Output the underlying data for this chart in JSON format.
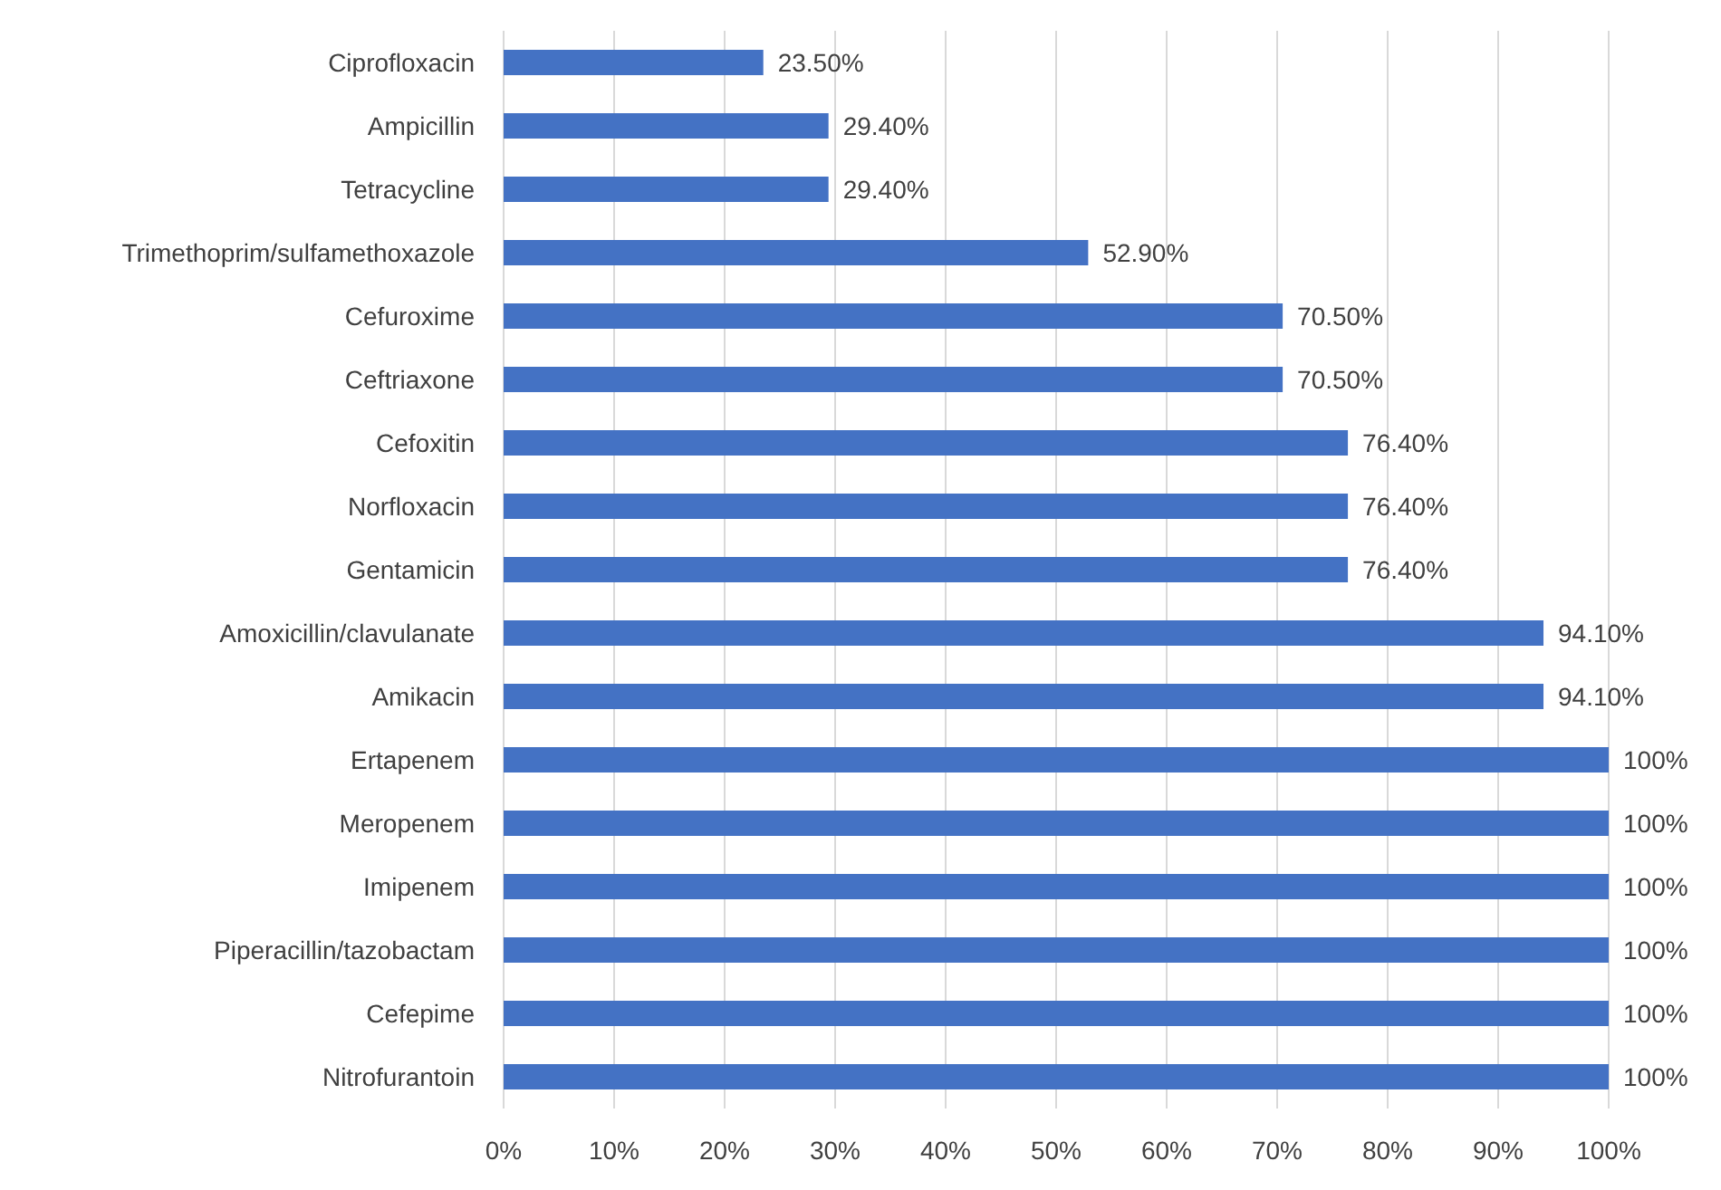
{
  "chart_data": {
    "type": "bar",
    "orientation": "horizontal",
    "categories": [
      "Ciprofloxacin",
      "Ampicillin",
      "Tetracycline",
      "Trimethoprim/sulfamethoxazole",
      "Cefuroxime",
      "Ceftriaxone",
      "Cefoxitin",
      "Norfloxacin",
      "Gentamicin",
      "Amoxicillin/clavulanate",
      "Amikacin",
      "Ertapenem",
      "Meropenem",
      "Imipenem",
      "Piperacillin/tazobactam",
      "Cefepime",
      "Nitrofurantoin"
    ],
    "values": [
      23.5,
      29.4,
      29.4,
      52.9,
      70.5,
      70.5,
      76.4,
      76.4,
      76.4,
      94.1,
      94.1,
      100,
      100,
      100,
      100,
      100,
      100
    ],
    "value_labels": [
      "23.50%",
      "29.40%",
      "29.40%",
      "52.90%",
      "70.50%",
      "70.50%",
      "76.40%",
      "76.40%",
      "76.40%",
      "94.10%",
      "94.10%",
      "100%",
      "100%",
      "100%",
      "100%",
      "100%",
      "100%"
    ],
    "color": "#4472c4",
    "xlim": [
      0,
      100
    ],
    "xticks": [
      {
        "value": 0,
        "label": "0%"
      },
      {
        "value": 10,
        "label": "10%"
      },
      {
        "value": 20,
        "label": "20%"
      },
      {
        "value": 30,
        "label": "30%"
      },
      {
        "value": 40,
        "label": "40%"
      },
      {
        "value": 50,
        "label": "50%"
      },
      {
        "value": 60,
        "label": "60%"
      },
      {
        "value": 70,
        "label": "70%"
      },
      {
        "value": 80,
        "label": "80%"
      },
      {
        "value": 90,
        "label": "90%"
      },
      {
        "value": 100,
        "label": "100%"
      }
    ],
    "grid": "x",
    "legend": false
  }
}
